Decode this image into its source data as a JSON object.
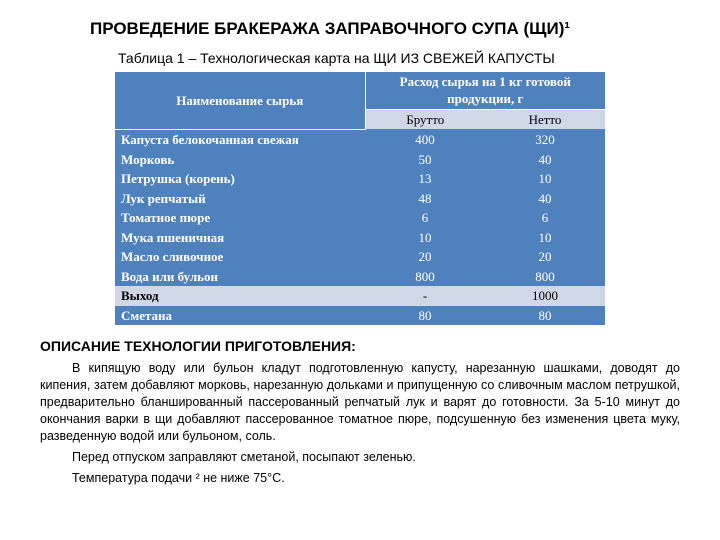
{
  "title": "ПРОВЕДЕНИЕ БРАКЕРАЖА ЗАПРАВОЧНОГО СУПА (ЩИ)¹",
  "table_caption": "Таблица 1 – Технологическая карта на ЩИ ИЗ СВЕЖЕЙ КАПУСТЫ",
  "table": {
    "header_name": "Наименование сырья",
    "header_consumption": "Расход сырья на 1 кг готовой продукции, г",
    "sub_brutto": "Брутто",
    "sub_netto": "Нетто",
    "rows": [
      {
        "name": "Капуста белокочанная свежая",
        "brutto": "400",
        "netto": "320"
      },
      {
        "name": "Морковь",
        "brutto": "50",
        "netto": "40"
      },
      {
        "name": "Петрушка (корень)",
        "brutto": "13",
        "netto": "10"
      },
      {
        "name": "Лук репчатый",
        "brutto": "48",
        "netto": "40"
      },
      {
        "name": "Томатное пюре",
        "brutto": "6",
        "netto": "6"
      },
      {
        "name": "Мука пшеничная",
        "brutto": "10",
        "netto": "10"
      },
      {
        "name": "Масло сливочное",
        "brutto": "20",
        "netto": "20"
      },
      {
        "name": "Вода или бульон",
        "brutto": "800",
        "netto": "800"
      },
      {
        "name": "Выход",
        "brutto": "-",
        "netto": "1000"
      },
      {
        "name": "Сметана",
        "brutto": "80",
        "netto": "80"
      }
    ],
    "colors": {
      "header_bg": "#4f81bd",
      "header_fg": "#ffffff",
      "alt_bg": "#d0d8e8",
      "alt_fg": "#000000"
    }
  },
  "section_heading": "ОПИСАНИЕ ТЕХНОЛОГИИ ПРИГОТОВЛЕНИЯ:",
  "para1": "В кипящую воду или бульон кладут подготовленную капусту, нарезанную шашками, доводят до кипения, затем добавляют морковь, нарезанную дольками и припущенную со сливочным маслом петрушкой, предварительно бланшированный пассерованный репчатый лук и варят до готовности. За 5-10 минут до окончания варки в щи добавляют пассерованное томатное пюре, подсушенную без изменения цвета муку, разведенную водой или бульоном, соль.",
  "para2": "Перед отпуском заправляют сметаной, посыпают зеленью.",
  "para3": "Температура подачи ² не ниже 75°С."
}
